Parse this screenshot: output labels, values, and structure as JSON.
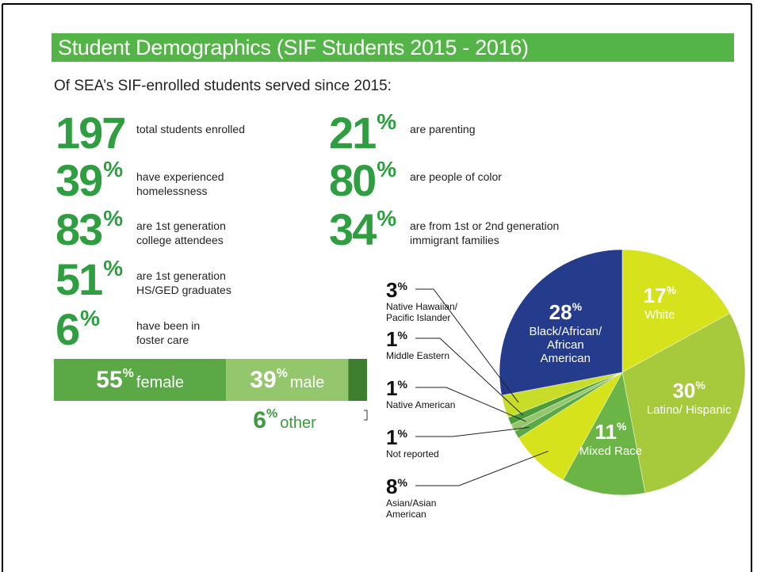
{
  "title": "Student Demographics (SIF Students 2015 - 2016)",
  "intro": "Of SEA’s SIF-enrolled students served since 2015:",
  "stats": [
    {
      "value": 197,
      "label": "total students enrolled"
    },
    {
      "value": 39,
      "unit": "%",
      "label": "have experienced homelessness"
    },
    {
      "value": 83,
      "unit": "%",
      "label": "are 1st generation college attendees"
    },
    {
      "value": 51,
      "unit": "%",
      "label": "are 1st generation HS/GED graduates"
    },
    {
      "value": 6,
      "unit": "%",
      "label": "have been in foster care"
    },
    {
      "value": 21,
      "unit": "%",
      "label": "are parenting"
    },
    {
      "value": 80,
      "unit": "%",
      "label": "are people of color"
    },
    {
      "value": 34,
      "unit": "%",
      "label": "are from 1st or 2nd generation immigrant families"
    }
  ],
  "chart_data": [
    {
      "type": "bar",
      "orientation": "horizontal",
      "stacked": true,
      "unit": "%",
      "xlim": [
        0,
        100
      ],
      "series": [
        {
          "name": "female",
          "color": "#5aa846",
          "values": [
            55
          ]
        },
        {
          "name": "male",
          "color": "#93c66d",
          "values": [
            39
          ]
        },
        {
          "name": "other",
          "color": "#3d7f2e",
          "values": [
            6
          ]
        }
      ]
    },
    {
      "type": "pie",
      "unit": "%",
      "categories": [
        "White",
        "Latino/ Hispanic",
        "Mixed Race",
        "Asian/Asian American",
        "Not reported",
        "Native American",
        "Middle Eastern",
        "Native Hawaiian/ Pacific Islander",
        "Black/African/ African American"
      ],
      "values": [
        17,
        30,
        11,
        8,
        1,
        1,
        1,
        3,
        28
      ],
      "colors": [
        "#d5e21c",
        "#a7c93c",
        "#6bb546",
        "#d5e21c",
        "#5aa846",
        "#93c66d",
        "#4c9c3c",
        "#c8dc2a",
        "#253b8c"
      ]
    }
  ]
}
